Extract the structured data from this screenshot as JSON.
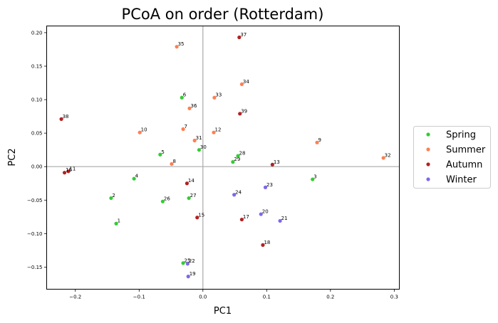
{
  "chart_data": {
    "type": "scatter",
    "title": "PCoA on order (Rotterdam)",
    "xlabel": "PC1",
    "ylabel": "PC2",
    "xlim": [
      -0.245,
      0.308
    ],
    "ylim": [
      -0.183,
      0.21
    ],
    "xticks": [
      -0.2,
      -0.1,
      0.0,
      0.1,
      0.2,
      0.3
    ],
    "xtick_labels": [
      "−0.2",
      "−0.1",
      "0.0",
      "0.1",
      "0.2",
      "0.3"
    ],
    "yticks": [
      -0.15,
      -0.1,
      -0.05,
      0.0,
      0.05,
      0.1,
      0.15,
      0.2
    ],
    "ytick_labels": [
      "−0.15",
      "−0.10",
      "−0.05",
      "0.00",
      "0.05",
      "0.10",
      "0.15",
      "0.20"
    ],
    "reference_lines": {
      "x": 0,
      "y": 0
    },
    "legend_position": "outside-right",
    "series": [
      {
        "name": "Spring",
        "color": "#33cc33",
        "points": [
          {
            "label": "1",
            "x": -0.136,
            "y": -0.085
          },
          {
            "label": "2",
            "x": -0.144,
            "y": -0.047
          },
          {
            "label": "3",
            "x": 0.172,
            "y": -0.019
          },
          {
            "label": "4",
            "x": -0.108,
            "y": -0.018
          },
          {
            "label": "5",
            "x": -0.067,
            "y": 0.018
          },
          {
            "label": "6",
            "x": -0.033,
            "y": 0.103
          },
          {
            "label": "25",
            "x": -0.031,
            "y": -0.144
          },
          {
            "label": "26",
            "x": -0.063,
            "y": -0.052
          },
          {
            "label": "27",
            "x": -0.022,
            "y": -0.047
          },
          {
            "label": "28",
            "x": 0.055,
            "y": 0.016
          },
          {
            "label": "29",
            "x": 0.047,
            "y": 0.007
          },
          {
            "label": "30",
            "x": -0.006,
            "y": 0.025
          }
        ]
      },
      {
        "name": "Summer",
        "color": "#ff7f50",
        "points": [
          {
            "label": "7",
            "x": -0.031,
            "y": 0.056
          },
          {
            "label": "8",
            "x": -0.049,
            "y": 0.004
          },
          {
            "label": "9",
            "x": 0.179,
            "y": 0.036
          },
          {
            "label": "10",
            "x": -0.099,
            "y": 0.051
          },
          {
            "label": "12",
            "x": 0.017,
            "y": 0.051
          },
          {
            "label": "31",
            "x": -0.013,
            "y": 0.039
          },
          {
            "label": "32",
            "x": 0.283,
            "y": 0.013
          },
          {
            "label": "33",
            "x": 0.018,
            "y": 0.103
          },
          {
            "label": "34",
            "x": 0.061,
            "y": 0.123
          },
          {
            "label": "35",
            "x": -0.041,
            "y": 0.179
          },
          {
            "label": "36",
            "x": -0.021,
            "y": 0.087
          }
        ]
      },
      {
        "name": "Autumn",
        "color": "#b22222",
        "points": [
          {
            "label": "11",
            "x": -0.211,
            "y": -0.007
          },
          {
            "label": "13",
            "x": 0.109,
            "y": 0.003
          },
          {
            "label": "14",
            "x": -0.025,
            "y": -0.025
          },
          {
            "label": "15",
            "x": -0.009,
            "y": -0.076
          },
          {
            "label": "16",
            "x": -0.217,
            "y": -0.009
          },
          {
            "label": "17",
            "x": 0.061,
            "y": -0.079
          },
          {
            "label": "18",
            "x": 0.094,
            "y": -0.117
          },
          {
            "label": "37",
            "x": 0.057,
            "y": 0.193
          },
          {
            "label": "38",
            "x": -0.222,
            "y": 0.071
          },
          {
            "label": "39",
            "x": 0.058,
            "y": 0.079
          }
        ]
      },
      {
        "name": "Winter",
        "color": "#7b68ee",
        "points": [
          {
            "label": "19",
            "x": -0.023,
            "y": -0.164
          },
          {
            "label": "20",
            "x": 0.091,
            "y": -0.071
          },
          {
            "label": "21",
            "x": 0.121,
            "y": -0.081
          },
          {
            "label": "22",
            "x": -0.024,
            "y": -0.145
          },
          {
            "label": "23",
            "x": 0.098,
            "y": -0.031
          },
          {
            "label": "24",
            "x": 0.049,
            "y": -0.042
          }
        ]
      }
    ]
  }
}
